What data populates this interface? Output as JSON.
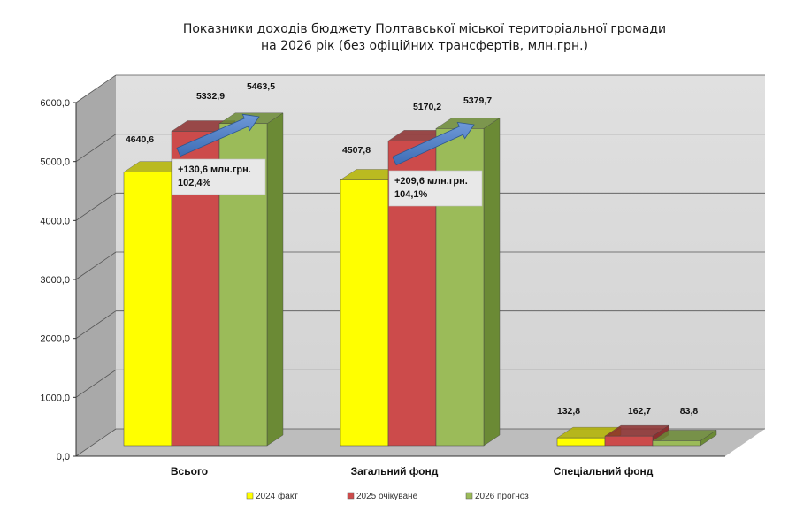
{
  "chart_data": {
    "type": "bar",
    "title_lines": [
      "Показники доходів бюджету Полтавської міської територіальної громади",
      "на 2026 рік (без офіційних трансфертів, млн.грн.)"
    ],
    "categories": [
      "Всього",
      "Загальний фонд",
      "Спеціальний фонд"
    ],
    "series": [
      {
        "name": "2024 факт",
        "values": [
          4640.6,
          4507.8,
          132.8
        ],
        "color": "#ffff00",
        "dark": "#b5b500"
      },
      {
        "name": "2025 очікуване",
        "values": [
          5332.9,
          5170.2,
          162.7
        ],
        "color": "#cc4b4b",
        "dark": "#8c2f2f"
      },
      {
        "name": "2026  прогноз",
        "values": [
          5463.5,
          5379.7,
          83.8
        ],
        "color": "#9bbb59",
        "dark": "#6b8a35"
      }
    ],
    "value_labels": [
      [
        "4640,6",
        "4507,8",
        "132,8"
      ],
      [
        "5332,9",
        "5170,2",
        "162,7"
      ],
      [
        "5463,5",
        "5379,7",
        "83,8"
      ]
    ],
    "ylim": [
      0,
      6000
    ],
    "yticks": [
      "0,0",
      "1000,0",
      "2000,0",
      "3000,0",
      "4000,0",
      "5000,0",
      "6000,0"
    ],
    "grid": true,
    "legend_position": "bottom",
    "annotations": [
      {
        "category": "Всього",
        "lines": [
          "+130,6 млн.грн.",
          "102,4%"
        ]
      },
      {
        "category": "Загальний фонд",
        "lines": [
          "+209,6 млн.грн.",
          "104,1%"
        ]
      }
    ]
  }
}
